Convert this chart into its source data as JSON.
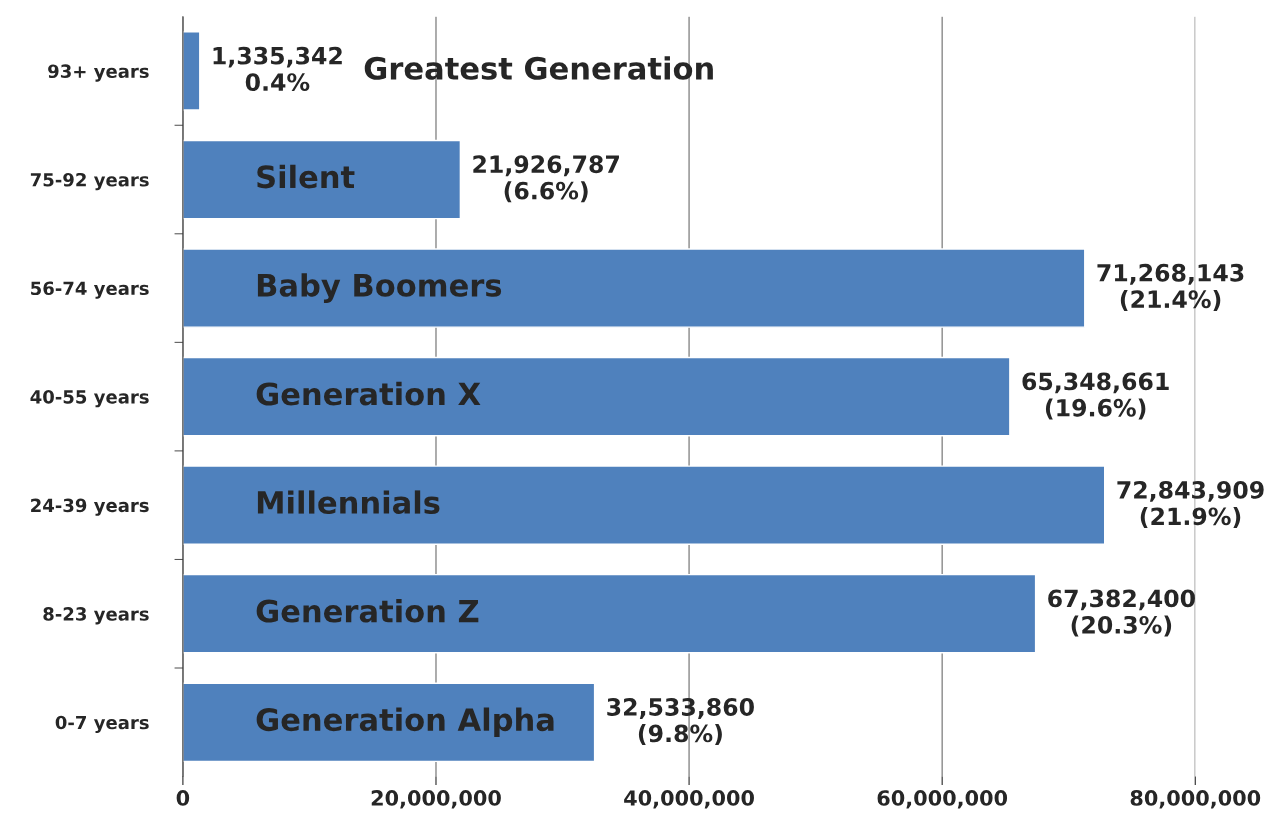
{
  "chart_data": {
    "type": "bar",
    "orientation": "horizontal",
    "categories": [
      "93+ years",
      "75-92 years",
      "56-74 years",
      "40-55 years",
      "24-39 years",
      "8-23 years",
      "0-7 years"
    ],
    "values": [
      1335342,
      21926787,
      71268143,
      65348661,
      72843909,
      67382400,
      32533860
    ],
    "value_labels": [
      "1,335,342\n0.4%",
      "21,926,787\n(6.6%)",
      "71,268,143\n(21.4%)",
      "65,348,661\n(19.6%)",
      "72,843,909\n(21.9%)",
      "67,382,400\n(20.3%)",
      "32,533,860\n(9.8%)"
    ],
    "color": "#4f81bd",
    "xlim": [
      0,
      80000000
    ],
    "xticks": [
      0,
      {
        "value": 20000000,
        "label": "20,000,000"
      },
      {
        "value": 40000000,
        "label": "40,000,000"
      },
      {
        "value": 60000000,
        "label": "60,000,000"
      },
      {
        "value": 80000000,
        "label": "80,000,000"
      }
    ],
    "grid": "x",
    "annotations": [
      "Greatest Generation",
      "Silent",
      "Baby Boomers",
      "Generation X",
      "Millennials",
      "Generation Z",
      "Generation Alpha"
    ]
  }
}
